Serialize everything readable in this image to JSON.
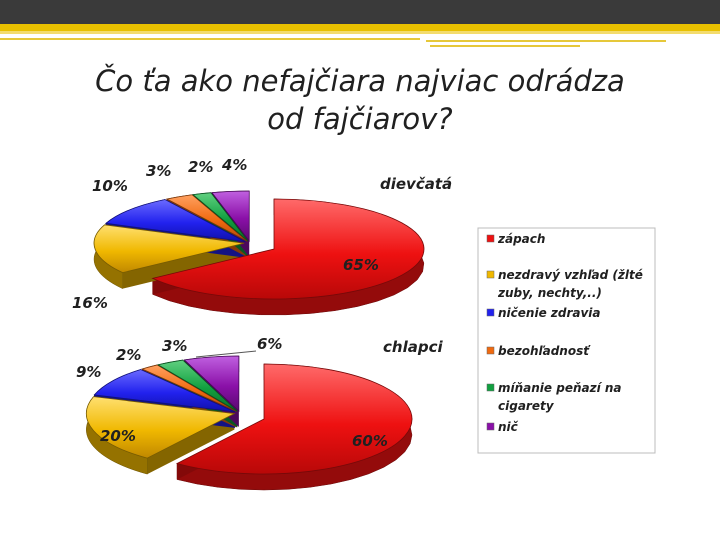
{
  "slide": {
    "title_line1": "Čo ťa ako nefajčiara najviac odrádza",
    "title_line2": "od fajčiarov?"
  },
  "chart_data": [
    {
      "type": "pie",
      "title": "dievčatá",
      "categories": [
        "zápach",
        "nezdravý vzhľad (žlté zuby, nechty,..)",
        "ničenie zdravia",
        "bezohľadnosť",
        "míňanie peňazí na cigarety",
        "nič"
      ],
      "values": [
        65,
        16,
        10,
        3,
        2,
        4
      ],
      "value_labels": [
        "65%",
        "16%",
        "10%",
        "3%",
        "2%",
        "4%"
      ],
      "legend_position": "right"
    },
    {
      "type": "pie",
      "title": "chlapci",
      "categories": [
        "zápach",
        "nezdravý vzhľad (žlté zuby, nechty,..)",
        "ničenie zdravia",
        "bezohľadnosť",
        "míňanie peňazí na cigarety",
        "nič"
      ],
      "values": [
        60,
        20,
        9,
        2,
        3,
        6
      ],
      "value_labels": [
        "60%",
        "20%",
        "9%",
        "2%",
        "3%",
        "6%"
      ],
      "legend_position": "right"
    }
  ],
  "legend": {
    "entries": [
      {
        "line1": "zápach",
        "line2": "",
        "color": "#ee1111"
      },
      {
        "line1": "nezdravý vzhľad (žlté",
        "line2": "zuby, nechty,..)",
        "color": "#f0b800"
      },
      {
        "line1": "ničenie zdravia",
        "line2": "",
        "color": "#2222ee"
      },
      {
        "line1": "bezohľadnosť",
        "line2": "",
        "color": "#f06a10"
      },
      {
        "line1": "míňanie peňazí na",
        "line2": "cigarety",
        "color": "#11a040"
      },
      {
        "line1": "nič",
        "line2": "",
        "color": "#8a10a8"
      }
    ]
  }
}
